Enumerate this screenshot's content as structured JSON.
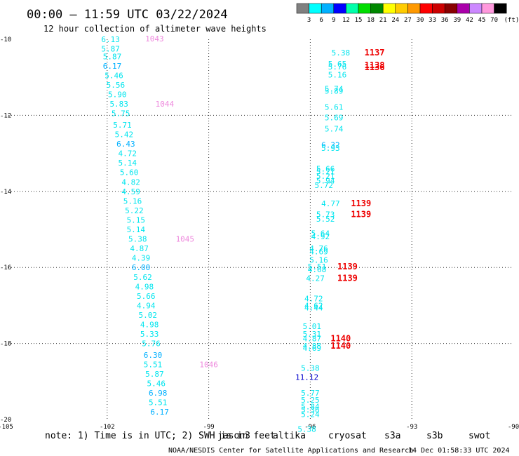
{
  "header": {
    "title": "00:00 — 11:59 UTC 03/22/2024",
    "subtitle": "12 hour collection of altimeter wave heights"
  },
  "scale": {
    "labels": [
      "3",
      "6",
      "9",
      "12",
      "15",
      "18",
      "21",
      "24",
      "27",
      "30",
      "33",
      "36",
      "39",
      "42",
      "45",
      "70"
    ],
    "unit": "(ft)",
    "colors": [
      "#808080",
      "#00ffff",
      "#00b0ff",
      "#0000ff",
      "#00ffaa",
      "#00dd00",
      "#008800",
      "#ffff00",
      "#ffcc00",
      "#ff9900",
      "#ff0000",
      "#cc0000",
      "#880000",
      "#aa00aa",
      "#cc88ff",
      "#ff99dd",
      "#000000"
    ]
  },
  "footer": {
    "note": "note:  1) Time is in UTC; 2) SWH is in feet",
    "satellites": [
      {
        "name": "jason3",
        "color": "#00aa00"
      },
      {
        "name": "altika",
        "color": "#ff9900"
      },
      {
        "name": "cryosat",
        "color": "#ff0000"
      },
      {
        "name": "s3a",
        "color": "#aa0000"
      },
      {
        "name": "s3b",
        "color": "#bbaaff"
      },
      {
        "name": "swot",
        "color": "#ff99dd"
      }
    ],
    "credit": "NOAA/NESDIS Center for Satellite Applications and Research",
    "timestamp": "14 Dec 01:58:33 UTC 2024"
  },
  "chart_data": {
    "type": "scatter",
    "xlim": [
      -105,
      -90
    ],
    "ylim": [
      -20,
      -10
    ],
    "x_ticks": [
      -105,
      -102,
      -99,
      -96,
      -93,
      -90
    ],
    "y_ticks": [
      -10,
      -12,
      -14,
      -16,
      -18,
      -20
    ],
    "grid": true,
    "points": [
      {
        "lon": -101.9,
        "lat": -10.0,
        "label": "6.13",
        "color": "#00e5ee"
      },
      {
        "lon": -101.9,
        "lat": -10.25,
        "label": "5.87",
        "color": "#00e5ee"
      },
      {
        "lon": -101.85,
        "lat": -10.45,
        "label": "5.87",
        "color": "#00e5ee"
      },
      {
        "lon": -101.85,
        "lat": -10.7,
        "label": "6.17",
        "color": "#00b0ff"
      },
      {
        "lon": -101.8,
        "lat": -10.95,
        "label": "5.46",
        "color": "#00e5ee"
      },
      {
        "lon": -101.75,
        "lat": -11.2,
        "label": "5.56",
        "color": "#00e5ee"
      },
      {
        "lon": -101.7,
        "lat": -11.45,
        "label": "5.90",
        "color": "#00e5ee"
      },
      {
        "lon": -101.65,
        "lat": -11.7,
        "label": "5.83",
        "color": "#00e5ee"
      },
      {
        "lon": -101.6,
        "lat": -11.95,
        "label": "5.75",
        "color": "#00e5ee"
      },
      {
        "lon": -101.55,
        "lat": -12.25,
        "label": "5.71",
        "color": "#00e5ee"
      },
      {
        "lon": -101.5,
        "lat": -12.5,
        "label": "5.42",
        "color": "#00e5ee"
      },
      {
        "lon": -101.45,
        "lat": -12.75,
        "label": "6.43",
        "color": "#00b0ff"
      },
      {
        "lon": -101.4,
        "lat": -13.0,
        "label": "4.72",
        "color": "#00e5ee"
      },
      {
        "lon": -101.4,
        "lat": -13.25,
        "label": "5.14",
        "color": "#00e5ee"
      },
      {
        "lon": -101.35,
        "lat": -13.5,
        "label": "5.60",
        "color": "#00e5ee"
      },
      {
        "lon": -101.3,
        "lat": -13.75,
        "label": "4.82",
        "color": "#00e5ee"
      },
      {
        "lon": -101.3,
        "lat": -14.0,
        "label": "4.59",
        "color": "#00e5ee"
      },
      {
        "lon": -101.25,
        "lat": -14.25,
        "label": "5.16",
        "color": "#00e5ee"
      },
      {
        "lon": -101.2,
        "lat": -14.5,
        "label": "5.22",
        "color": "#00e5ee"
      },
      {
        "lon": -101.15,
        "lat": -14.75,
        "label": "5.15",
        "color": "#00e5ee"
      },
      {
        "lon": -101.15,
        "lat": -15.0,
        "label": "5.14",
        "color": "#00e5ee"
      },
      {
        "lon": -101.1,
        "lat": -15.25,
        "label": "5.38",
        "color": "#00e5ee"
      },
      {
        "lon": -101.05,
        "lat": -15.5,
        "label": "4.87",
        "color": "#00e5ee"
      },
      {
        "lon": -101.0,
        "lat": -15.75,
        "label": "4.39",
        "color": "#00e5ee"
      },
      {
        "lon": -101.0,
        "lat": -16.0,
        "label": "6.00",
        "color": "#00b0ff"
      },
      {
        "lon": -100.95,
        "lat": -16.25,
        "label": "5.62",
        "color": "#00e5ee"
      },
      {
        "lon": -100.9,
        "lat": -16.5,
        "label": "4.98",
        "color": "#00e5ee"
      },
      {
        "lon": -100.85,
        "lat": -16.75,
        "label": "5.66",
        "color": "#00e5ee"
      },
      {
        "lon": -100.85,
        "lat": -17.0,
        "label": "4.94",
        "color": "#00e5ee"
      },
      {
        "lon": -100.8,
        "lat": -17.25,
        "label": "5.02",
        "color": "#00e5ee"
      },
      {
        "lon": -100.75,
        "lat": -17.5,
        "label": "4.98",
        "color": "#00e5ee"
      },
      {
        "lon": -100.75,
        "lat": -17.75,
        "label": "5.33",
        "color": "#00e5ee"
      },
      {
        "lon": -100.7,
        "lat": -18.0,
        "label": "5.76",
        "color": "#00e5ee"
      },
      {
        "lon": -100.65,
        "lat": -18.3,
        "label": "6.30",
        "color": "#00b0ff"
      },
      {
        "lon": -100.65,
        "lat": -18.55,
        "label": "5.51",
        "color": "#00e5ee"
      },
      {
        "lon": -100.6,
        "lat": -18.8,
        "label": "5.87",
        "color": "#00e5ee"
      },
      {
        "lon": -100.55,
        "lat": -19.05,
        "label": "5.46",
        "color": "#00e5ee"
      },
      {
        "lon": -100.5,
        "lat": -19.3,
        "label": "6.98",
        "color": "#00b0ff"
      },
      {
        "lon": -100.5,
        "lat": -19.55,
        "label": "5.51",
        "color": "#00e5ee"
      },
      {
        "lon": -100.45,
        "lat": -19.8,
        "label": "6.17",
        "color": "#00b0ff"
      },
      {
        "lon": -100.6,
        "lat": -9.98,
        "label": "1043",
        "color": "#ee88dd"
      },
      {
        "lon": -100.3,
        "lat": -11.7,
        "label": "1044",
        "color": "#ee88dd"
      },
      {
        "lon": -99.7,
        "lat": -15.25,
        "label": "1045",
        "color": "#ee88dd"
      },
      {
        "lon": -99.0,
        "lat": -18.55,
        "label": "1046",
        "color": "#ee88dd"
      },
      {
        "lon": -95.1,
        "lat": -10.35,
        "label": "5.38",
        "color": "#00e5ee"
      },
      {
        "lon": -95.2,
        "lat": -10.65,
        "label": "5.65",
        "color": "#00e5ee"
      },
      {
        "lon": -95.2,
        "lat": -10.72,
        "label": "5.76",
        "color": "#00e5ee"
      },
      {
        "lon": -95.2,
        "lat": -10.93,
        "label": "5.16",
        "color": "#00e5ee"
      },
      {
        "lon": -95.3,
        "lat": -11.3,
        "label": "5.74",
        "color": "#00e5ee"
      },
      {
        "lon": -95.3,
        "lat": -11.36,
        "label": "5.89",
        "color": "#00e5ee"
      },
      {
        "lon": -95.3,
        "lat": -11.78,
        "label": "5.61",
        "color": "#00e5ee"
      },
      {
        "lon": -95.3,
        "lat": -12.06,
        "label": "5.69",
        "color": "#00e5ee"
      },
      {
        "lon": -95.3,
        "lat": -12.35,
        "label": "5.74",
        "color": "#00e5ee"
      },
      {
        "lon": -95.4,
        "lat": -12.78,
        "label": "6.32",
        "color": "#00b0ff"
      },
      {
        "lon": -95.4,
        "lat": -12.86,
        "label": "5.93",
        "color": "#00e5ee"
      },
      {
        "lon": -95.55,
        "lat": -13.4,
        "label": "5.66",
        "color": "#00e5ee"
      },
      {
        "lon": -95.55,
        "lat": -13.48,
        "label": "5.21",
        "color": "#00e5ee"
      },
      {
        "lon": -95.55,
        "lat": -13.6,
        "label": "5.21",
        "color": "#00e5ee"
      },
      {
        "lon": -95.55,
        "lat": -13.72,
        "label": "5.94",
        "color": "#00e5ee"
      },
      {
        "lon": -95.6,
        "lat": -13.84,
        "label": "5.72",
        "color": "#00e5ee"
      },
      {
        "lon": -95.4,
        "lat": -14.32,
        "label": "4.77",
        "color": "#00e5ee"
      },
      {
        "lon": -95.55,
        "lat": -14.6,
        "label": "5.73",
        "color": "#00e5ee"
      },
      {
        "lon": -95.55,
        "lat": -14.72,
        "label": "5.52",
        "color": "#00e5ee"
      },
      {
        "lon": -95.7,
        "lat": -15.1,
        "label": "5.64",
        "color": "#00e5ee"
      },
      {
        "lon": -95.7,
        "lat": -15.18,
        "label": "4.92",
        "color": "#00e5ee"
      },
      {
        "lon": -95.75,
        "lat": -15.5,
        "label": "4.76",
        "color": "#00e5ee"
      },
      {
        "lon": -95.75,
        "lat": -15.58,
        "label": "4.69",
        "color": "#00e5ee"
      },
      {
        "lon": -95.75,
        "lat": -15.8,
        "label": "5.16",
        "color": "#00e5ee"
      },
      {
        "lon": -95.8,
        "lat": -15.98,
        "label": "5.51",
        "color": "#00e5ee"
      },
      {
        "lon": -95.8,
        "lat": -16.05,
        "label": "4.68",
        "color": "#00e5ee"
      },
      {
        "lon": -95.85,
        "lat": -16.28,
        "label": "4.27",
        "color": "#00e5ee"
      },
      {
        "lon": -95.9,
        "lat": -16.82,
        "label": "4.72",
        "color": "#00e5ee"
      },
      {
        "lon": -95.9,
        "lat": -17.0,
        "label": "4.62",
        "color": "#00e5ee"
      },
      {
        "lon": -95.9,
        "lat": -17.06,
        "label": "4.44",
        "color": "#00e5ee"
      },
      {
        "lon": -95.95,
        "lat": -17.55,
        "label": "5.01",
        "color": "#00e5ee"
      },
      {
        "lon": -95.95,
        "lat": -17.75,
        "label": "5.31",
        "color": "#00e5ee"
      },
      {
        "lon": -95.95,
        "lat": -17.87,
        "label": "4.87",
        "color": "#00e5ee"
      },
      {
        "lon": -95.95,
        "lat": -18.06,
        "label": "4.88",
        "color": "#00e5ee"
      },
      {
        "lon": -95.95,
        "lat": -18.12,
        "label": "4.69",
        "color": "#00e5ee"
      },
      {
        "lon": -96.0,
        "lat": -18.64,
        "label": "5.38",
        "color": "#00e5ee"
      },
      {
        "lon": -96.1,
        "lat": -18.88,
        "label": "11.12",
        "color": "#0000cc"
      },
      {
        "lon": -96.0,
        "lat": -19.3,
        "label": "5.77",
        "color": "#00e5ee"
      },
      {
        "lon": -96.0,
        "lat": -19.48,
        "label": "5.25",
        "color": "#00e5ee"
      },
      {
        "lon": -96.0,
        "lat": -19.66,
        "label": "5.84",
        "color": "#00e5ee"
      },
      {
        "lon": -96.0,
        "lat": -19.74,
        "label": "5.36",
        "color": "#00e5ee"
      },
      {
        "lon": -96.0,
        "lat": -19.86,
        "label": "5.24",
        "color": "#00e5ee"
      },
      {
        "lon": -96.1,
        "lat": -20.25,
        "label": "5.38",
        "color": "#00e5ee"
      }
    ],
    "cycle_labels": [
      {
        "lon": -94.4,
        "lat": -10.35,
        "label": "1137",
        "color": "#ee0000"
      },
      {
        "lon": -94.4,
        "lat": -10.68,
        "label": "1138",
        "color": "#ee0000"
      },
      {
        "lon": -94.4,
        "lat": -10.74,
        "label": "1136",
        "color": "#ee0000"
      },
      {
        "lon": -94.8,
        "lat": -14.32,
        "label": "1139",
        "color": "#ee0000"
      },
      {
        "lon": -94.8,
        "lat": -14.6,
        "label": "1139",
        "color": "#ee0000"
      },
      {
        "lon": -95.2,
        "lat": -15.98,
        "label": "1139",
        "color": "#ee0000"
      },
      {
        "lon": -95.2,
        "lat": -16.28,
        "label": "1139",
        "color": "#ee0000"
      },
      {
        "lon": -95.4,
        "lat": -17.87,
        "label": "1140",
        "color": "#ee0000"
      },
      {
        "lon": -95.4,
        "lat": -18.06,
        "label": "1140",
        "color": "#ee0000"
      }
    ]
  }
}
